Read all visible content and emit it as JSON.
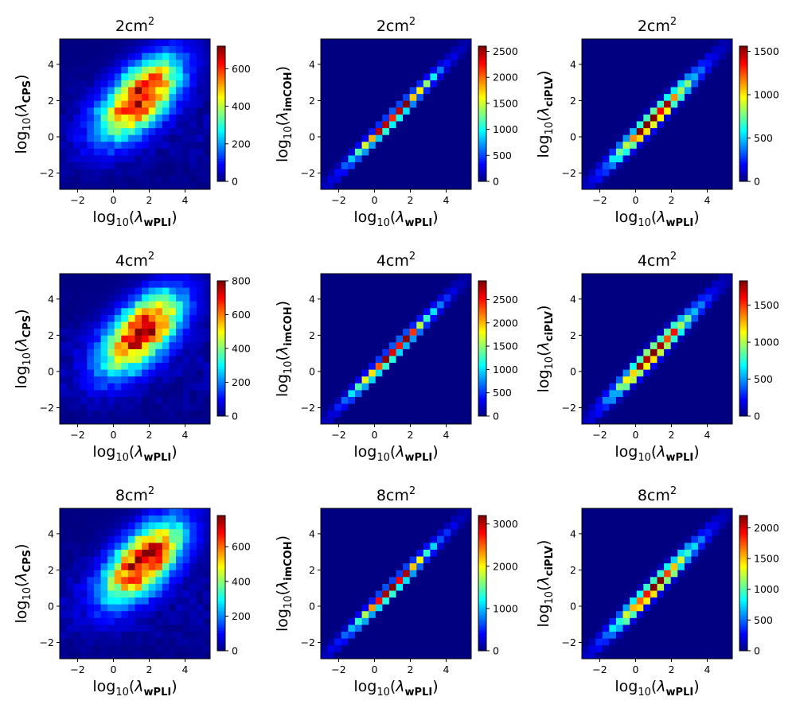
{
  "figure": {
    "colormap": "jet",
    "background_color": "#00007f"
  },
  "text": {
    "area_suffix": "cm",
    "area_exponent": "2",
    "log_prefix": "log",
    "log_base": "10",
    "lambda": "λ",
    "xlabel_subscript": "wPLI"
  },
  "chart_data": [
    {
      "type": "heatmap",
      "row": 0,
      "col": 0,
      "title_value": "2",
      "ylabel_subscript": "CPS",
      "xlim": [
        -3,
        5.4
      ],
      "ylim": [
        -2.9,
        5.4
      ],
      "xticks": [
        -2,
        0,
        2,
        4
      ],
      "yticks": [
        -2,
        0,
        2,
        4
      ],
      "colorbar": {
        "min": 0,
        "max": 720,
        "ticks": [
          0,
          200,
          400,
          600
        ]
      },
      "pattern": "broad",
      "center": [
        1.5,
        2.2
      ],
      "peak": 720
    },
    {
      "type": "heatmap",
      "row": 0,
      "col": 1,
      "title_value": "2",
      "ylabel_subscript": "imCOH",
      "xlim": [
        -3,
        5.4
      ],
      "ylim": [
        -2.9,
        5.4
      ],
      "xticks": [
        -2,
        0,
        2,
        4
      ],
      "yticks": [
        -2,
        0,
        2,
        4
      ],
      "colorbar": {
        "min": 0,
        "max": 2600,
        "ticks": [
          0,
          500,
          1000,
          1500,
          2000,
          2500
        ]
      },
      "pattern": "diagonal",
      "peak": 2600
    },
    {
      "type": "heatmap",
      "row": 0,
      "col": 2,
      "title_value": "2",
      "ylabel_subscript": "ciPLV",
      "xlim": [
        -3,
        5.4
      ],
      "ylim": [
        -2.9,
        5.4
      ],
      "xticks": [
        -2,
        0,
        2,
        4
      ],
      "yticks": [
        -2,
        0,
        2,
        4
      ],
      "colorbar": {
        "min": 0,
        "max": 1560,
        "ticks": [
          0,
          500,
          1000,
          1500
        ]
      },
      "pattern": "diagonal_wide",
      "peak": 1560
    },
    {
      "type": "heatmap",
      "row": 1,
      "col": 0,
      "title_value": "4",
      "ylabel_subscript": "CPS",
      "xlim": [
        -3,
        5.4
      ],
      "ylim": [
        -2.9,
        5.4
      ],
      "xticks": [
        -2,
        0,
        2,
        4
      ],
      "yticks": [
        -2,
        0,
        2,
        4
      ],
      "colorbar": {
        "min": 0,
        "max": 800,
        "ticks": [
          0,
          200,
          400,
          600,
          800
        ]
      },
      "pattern": "broad",
      "center": [
        1.6,
        2.2
      ],
      "peak": 800
    },
    {
      "type": "heatmap",
      "row": 1,
      "col": 1,
      "title_value": "4",
      "ylabel_subscript": "imCOH",
      "xlim": [
        -3,
        5.4
      ],
      "ylim": [
        -2.9,
        5.4
      ],
      "xticks": [
        -2,
        0,
        2,
        4
      ],
      "yticks": [
        -2,
        0,
        2,
        4
      ],
      "colorbar": {
        "min": 0,
        "max": 2900,
        "ticks": [
          0,
          500,
          1000,
          1500,
          2000,
          2500
        ]
      },
      "pattern": "diagonal",
      "peak": 2900
    },
    {
      "type": "heatmap",
      "row": 1,
      "col": 2,
      "title_value": "4",
      "ylabel_subscript": "ciPLV",
      "xlim": [
        -3,
        5.4
      ],
      "ylim": [
        -2.9,
        5.4
      ],
      "xticks": [
        -2,
        0,
        2,
        4
      ],
      "yticks": [
        -2,
        0,
        2,
        4
      ],
      "colorbar": {
        "min": 0,
        "max": 1830,
        "ticks": [
          0,
          500,
          1000,
          1500
        ]
      },
      "pattern": "diagonal_wide",
      "peak": 1830
    },
    {
      "type": "heatmap",
      "row": 2,
      "col": 0,
      "title_value": "8",
      "ylabel_subscript": "CPS",
      "xlim": [
        -3,
        5.4
      ],
      "ylim": [
        -2.9,
        5.4
      ],
      "xticks": [
        -2,
        0,
        2,
        4
      ],
      "yticks": [
        -2,
        0,
        2,
        4
      ],
      "colorbar": {
        "min": 0,
        "max": 780,
        "ticks": [
          0,
          200,
          400,
          600
        ]
      },
      "pattern": "broad",
      "center": [
        1.7,
        2.5
      ],
      "peak": 780
    },
    {
      "type": "heatmap",
      "row": 2,
      "col": 1,
      "title_value": "8",
      "ylabel_subscript": "imCOH",
      "xlim": [
        -3,
        5.4
      ],
      "ylim": [
        -2.9,
        5.4
      ],
      "xticks": [
        -2,
        0,
        2,
        4
      ],
      "yticks": [
        -2,
        0,
        2,
        4
      ],
      "colorbar": {
        "min": 0,
        "max": 3200,
        "ticks": [
          0,
          1000,
          2000,
          3000
        ]
      },
      "pattern": "diagonal",
      "peak": 3200
    },
    {
      "type": "heatmap",
      "row": 2,
      "col": 2,
      "title_value": "8",
      "ylabel_subscript": "ciPLV",
      "xlim": [
        -3,
        5.4
      ],
      "ylim": [
        -2.9,
        5.4
      ],
      "xticks": [
        -2,
        0,
        2,
        4
      ],
      "yticks": [
        -2,
        0,
        2,
        4
      ],
      "colorbar": {
        "min": 0,
        "max": 2200,
        "ticks": [
          0,
          500,
          1000,
          1500,
          2000
        ]
      },
      "pattern": "diagonal_wide",
      "peak": 2200
    }
  ]
}
